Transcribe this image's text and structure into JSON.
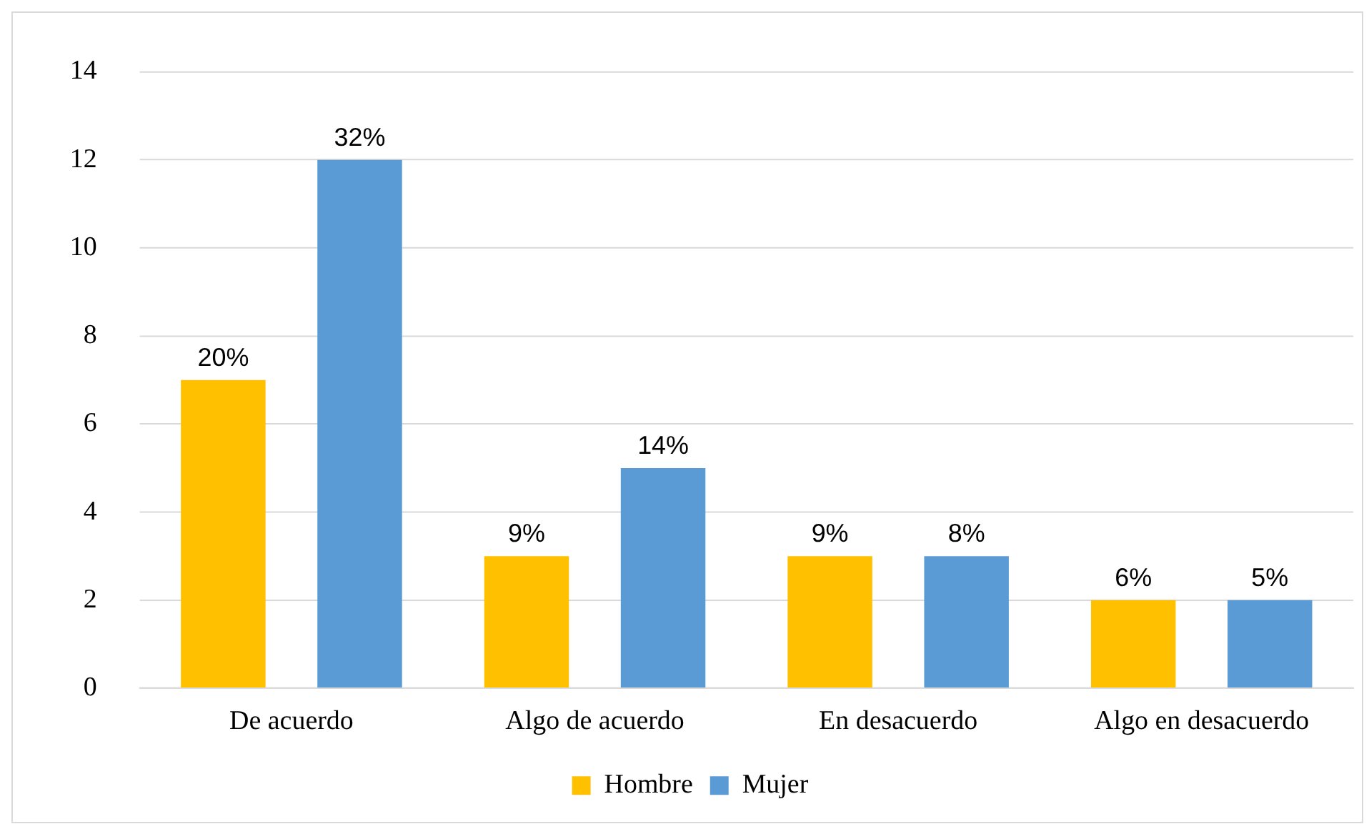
{
  "chart_data": {
    "type": "bar",
    "categories": [
      "De acuerdo",
      "Algo de acuerdo",
      "En desacuerdo",
      "Algo en desacuerdo"
    ],
    "series": [
      {
        "name": "Hombre",
        "color": "#ffc000",
        "values": [
          7,
          3,
          3,
          2
        ]
      },
      {
        "name": "Mujer",
        "color": "#5b9bd5",
        "values": [
          12,
          5,
          3,
          2
        ]
      }
    ],
    "annotations": [
      "20%",
      "9%",
      "9%",
      "6%",
      "32%",
      "14%",
      "8%",
      "5%"
    ],
    "ylim": [
      0,
      14
    ],
    "yticks": [
      0,
      2,
      4,
      6,
      8,
      10,
      12,
      14
    ],
    "grid": "y",
    "legend": "bottom"
  }
}
